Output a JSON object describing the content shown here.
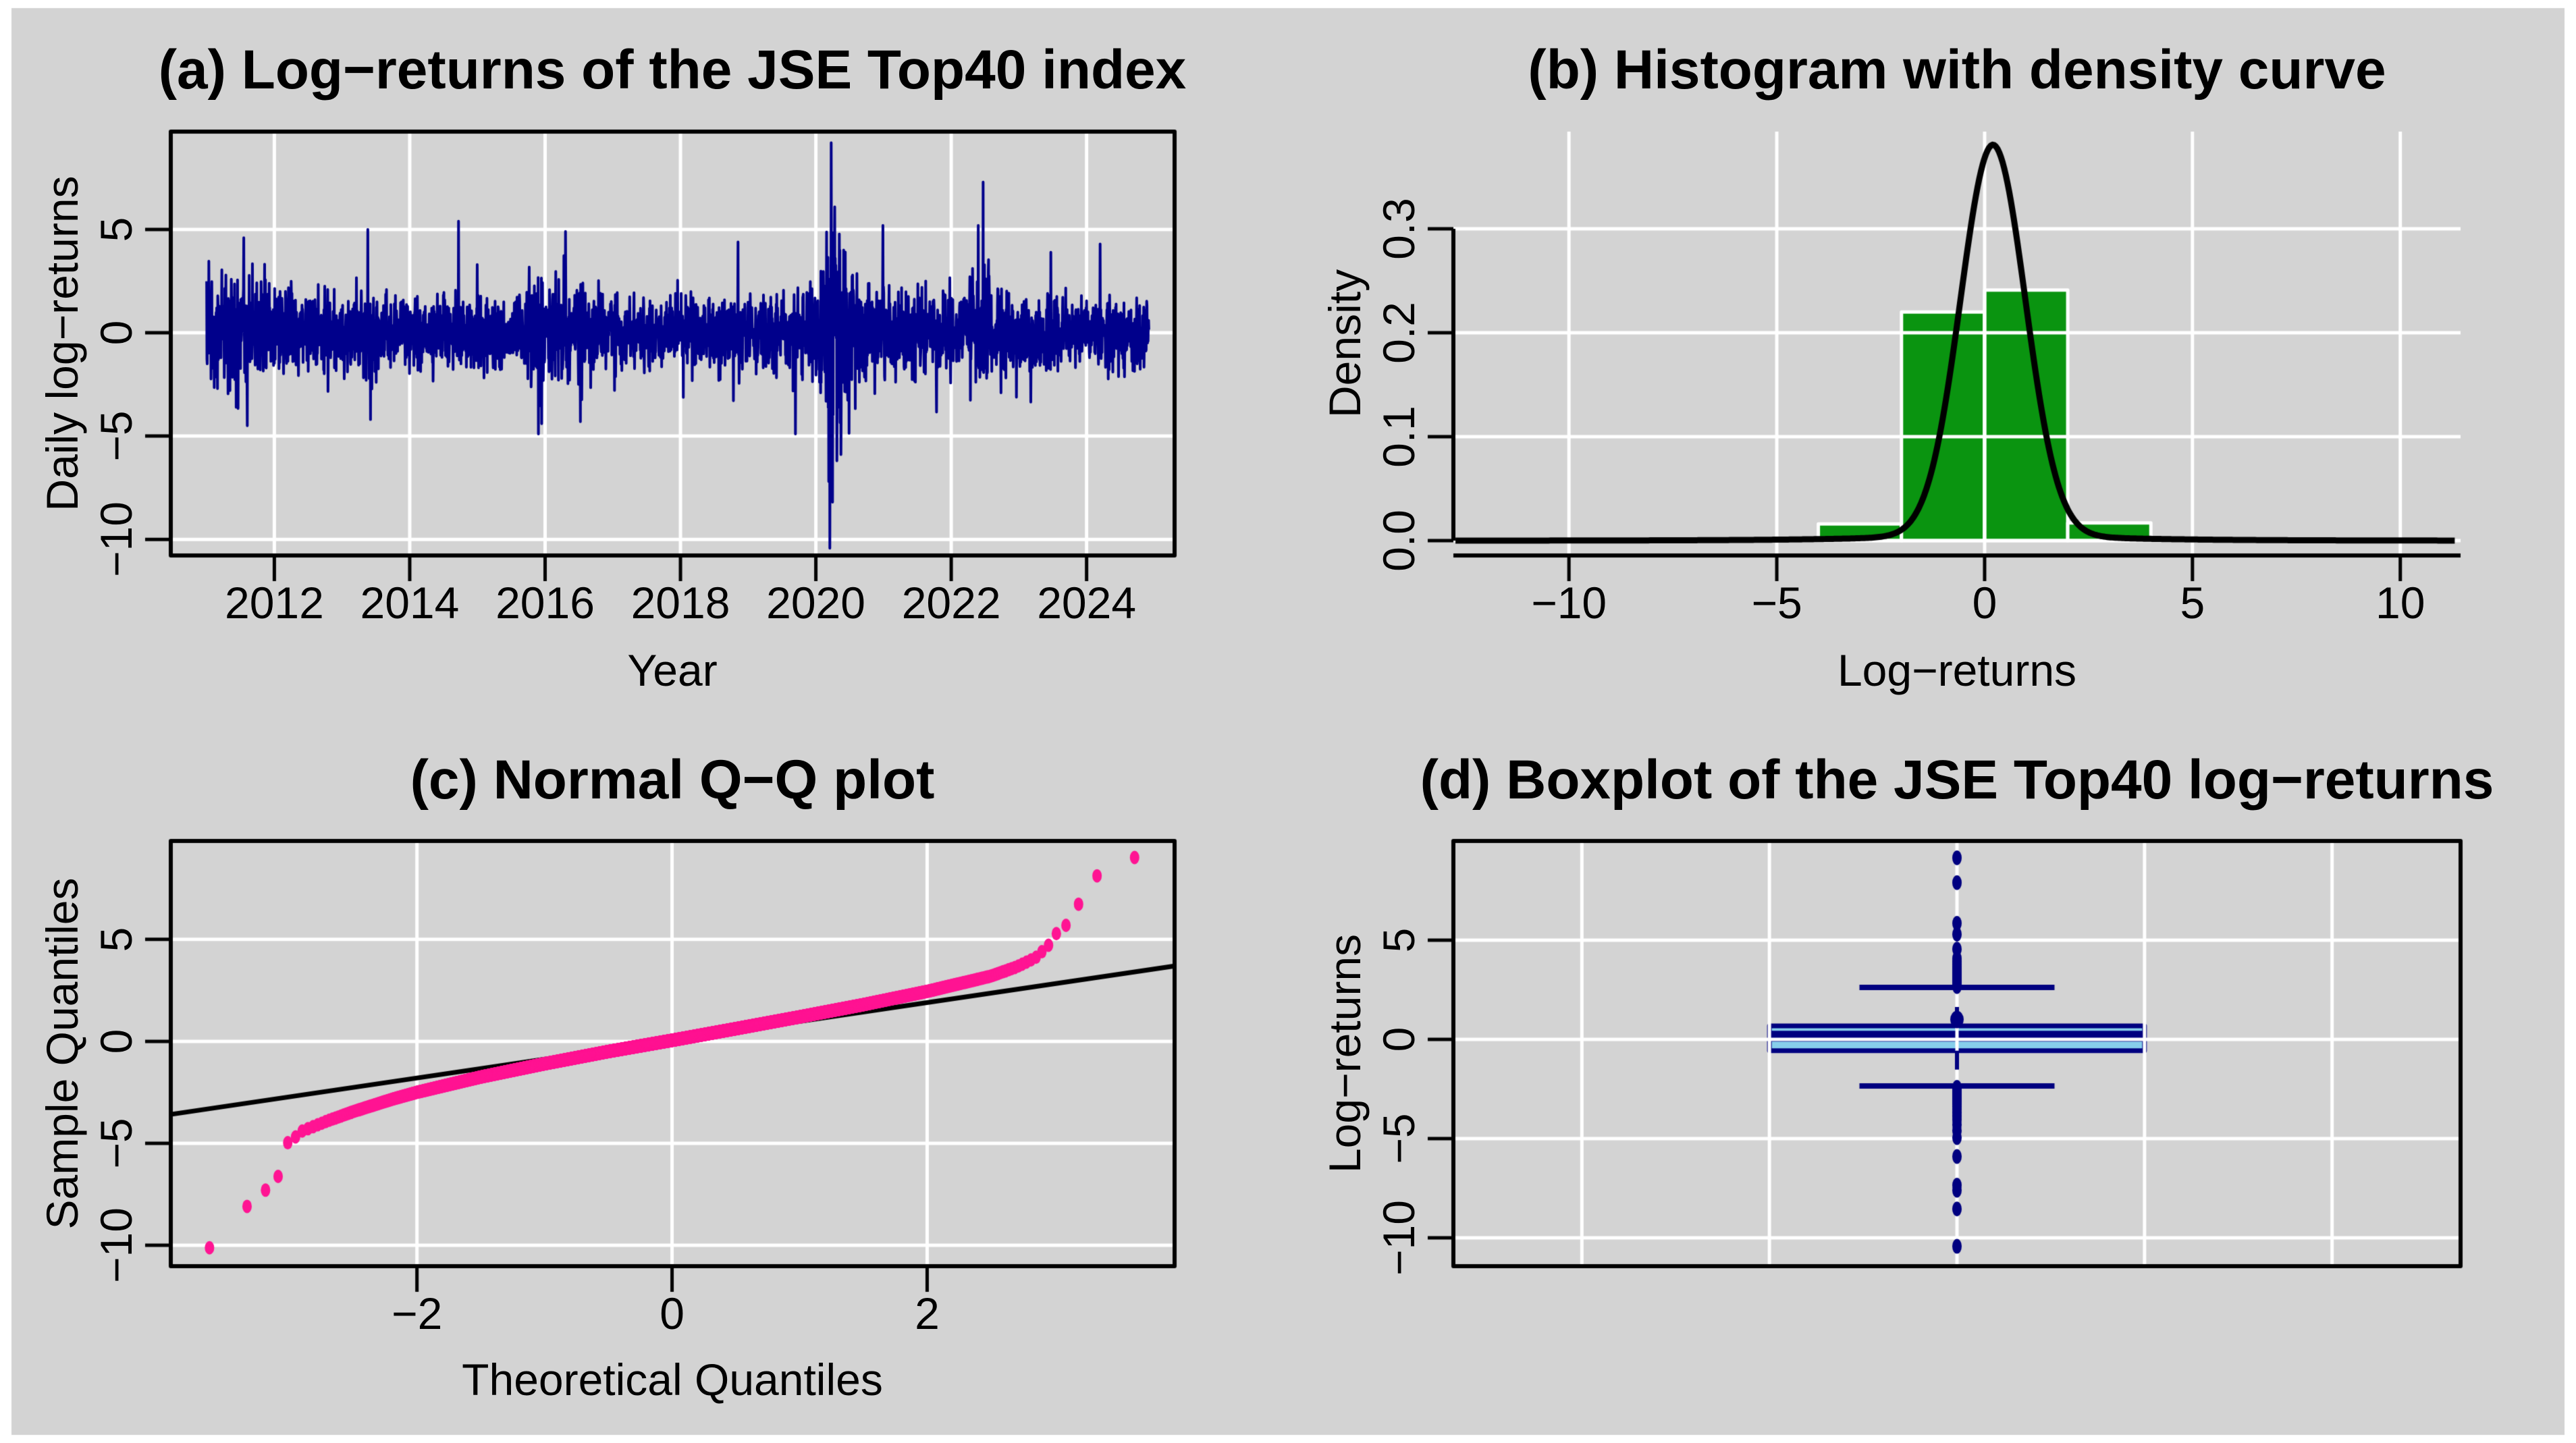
{
  "figure": {
    "background": "#ffffff",
    "canvas_background": "#d3d3d3",
    "grid_color": "#ffffff",
    "axis_color": "#000000",
    "text_color": "#000000"
  },
  "chart_data": [
    {
      "id": "a",
      "type": "line",
      "title": "(a) Log−returns of the JSE Top40 index",
      "xlabel": "Year",
      "ylabel": "Daily log−returns",
      "x_ticks": [
        2012,
        2014,
        2016,
        2018,
        2020,
        2022,
        2024
      ],
      "x_tick_labels": [
        "2012",
        "2014",
        "2016",
        "2018",
        "2020",
        "2022",
        "2024"
      ],
      "y_ticks": [
        5,
        0,
        -5,
        -10
      ],
      "y_tick_labels": [
        "5",
        "0",
        "−5",
        "−10"
      ],
      "x_range": [
        2010.47,
        2025.3
      ],
      "y_range": [
        -10.78,
        9.74
      ],
      "grid": true,
      "series": {
        "name": "daily-log-returns",
        "color": "#00008B",
        "n": 3480,
        "t_start": 2011.0,
        "t_end": 2024.92,
        "seed": 42,
        "value_min": -10.43,
        "value_max": 9.2,
        "volatility_knots": [
          [
            2011.0,
            1.15
          ],
          [
            2011.6,
            1.35
          ],
          [
            2012.2,
            0.95
          ],
          [
            2013.0,
            0.88
          ],
          [
            2013.5,
            1.0
          ],
          [
            2014.3,
            0.8
          ],
          [
            2014.9,
            1.0
          ],
          [
            2015.6,
            0.95
          ],
          [
            2016.0,
            1.2
          ],
          [
            2016.7,
            1.05
          ],
          [
            2017.4,
            0.7
          ],
          [
            2018.2,
            0.9
          ],
          [
            2019.0,
            1.0
          ],
          [
            2019.8,
            0.95
          ],
          [
            2020.15,
            1.7
          ],
          [
            2020.25,
            2.6
          ],
          [
            2020.6,
            1.5
          ],
          [
            2021.2,
            1.0
          ],
          [
            2021.9,
            0.9
          ],
          [
            2022.45,
            1.25
          ],
          [
            2023.2,
            0.95
          ],
          [
            2024.0,
            0.8
          ],
          [
            2024.92,
            0.85
          ]
        ],
        "events": [
          [
            2011.55,
            4.6
          ],
          [
            2011.6,
            -4.5
          ],
          [
            2013.38,
            5.0
          ],
          [
            2013.42,
            -4.2
          ],
          [
            2014.72,
            5.4
          ],
          [
            2015.95,
            -4.4
          ],
          [
            2016.3,
            4.9
          ],
          [
            2016.52,
            -4.3
          ],
          [
            2018.85,
            4.4
          ],
          [
            2019.7,
            -4.9
          ],
          [
            2020.19,
            -7.2
          ],
          [
            2020.205,
            -10.43
          ],
          [
            2020.225,
            9.2
          ],
          [
            2020.245,
            -8.2
          ],
          [
            2020.28,
            6.1
          ],
          [
            2020.31,
            -6.2
          ],
          [
            2022.4,
            5.2
          ],
          [
            2022.47,
            7.3
          ],
          [
            2023.47,
            3.9
          ],
          [
            2024.2,
            4.3
          ]
        ]
      }
    },
    {
      "id": "b",
      "type": "bar",
      "title": "(b) Histogram with density curve",
      "xlabel": "Log−returns",
      "ylabel": "Density",
      "x_ticks": [
        -10,
        -5,
        0,
        5,
        10
      ],
      "x_tick_labels": [
        "−10",
        "−5",
        "0",
        "5",
        "10"
      ],
      "y_ticks": [
        0,
        0.1,
        0.2,
        0.3
      ],
      "y_tick_labels": [
        "0.0",
        "0.1",
        "0.2",
        "0.3"
      ],
      "x_range": [
        -12.78,
        11.45
      ],
      "y_range": [
        -0.01428,
        0.3935
      ],
      "grid": true,
      "bar_color": "#0A9410",
      "bar_border": "#ffffff",
      "bins": [
        {
          "from": -4,
          "to": -2,
          "density": 0.016
        },
        {
          "from": -2,
          "to": 0,
          "density": 0.22
        },
        {
          "from": 0,
          "to": 2,
          "density": 0.241
        },
        {
          "from": 2,
          "to": 4,
          "density": 0.017
        }
      ],
      "density_curve": {
        "color": "#000000",
        "peak": 0.372,
        "center": 0.2,
        "sigma": 0.78,
        "tail_amp": 0.009,
        "tail_scale": 2.3
      }
    },
    {
      "id": "c",
      "type": "scatter",
      "title": "(c) Normal Q−Q plot",
      "xlabel": "Theoretical Quantiles",
      "ylabel": "Sample Quantiles",
      "x_ticks": [
        -2,
        0,
        2
      ],
      "x_tick_labels": [
        "−2",
        "0",
        "2"
      ],
      "y_ticks": [
        5,
        0,
        -5,
        -10
      ],
      "y_tick_labels": [
        "5",
        "0",
        "−5",
        "−10"
      ],
      "x_range": [
        -3.93,
        3.94
      ],
      "y_range": [
        -11.03,
        9.83
      ],
      "grid": true,
      "n_points": 3480,
      "point_color": "#FF1493",
      "qq_anchors": [
        [
          -3.67,
          -10.43
        ],
        [
          -3.35,
          -8.2
        ],
        [
          -3.22,
          -7.45
        ],
        [
          -3.1,
          -6.9
        ],
        [
          -3.02,
          -5.0
        ],
        [
          -2.98,
          -4.85
        ],
        [
          -2.9,
          -4.4
        ],
        [
          -2.7,
          -3.9
        ],
        [
          -2.5,
          -3.45
        ],
        [
          -2.2,
          -2.85
        ],
        [
          -2.0,
          -2.5
        ],
        [
          -1.5,
          -1.75
        ],
        [
          -1.0,
          -1.1
        ],
        [
          -0.5,
          -0.5
        ],
        [
          0,
          0.05
        ],
        [
          0.5,
          0.62
        ],
        [
          1.0,
          1.2
        ],
        [
          1.5,
          1.8
        ],
        [
          2.0,
          2.45
        ],
        [
          2.3,
          2.9
        ],
        [
          2.5,
          3.2
        ],
        [
          2.7,
          3.65
        ],
        [
          2.85,
          4.1
        ],
        [
          2.95,
          4.7
        ],
        [
          3.02,
          5.35
        ],
        [
          3.13,
          5.9
        ],
        [
          3.27,
          7.93
        ],
        [
          3.67,
          9.15
        ]
      ],
      "reference_line": {
        "slope": 0.925,
        "intercept": 0.05,
        "color": "#000000"
      }
    },
    {
      "id": "d",
      "type": "boxplot",
      "title": "(d) Boxplot of the JSE Top40 log−returns",
      "xlabel": "",
      "ylabel": "Log−returns",
      "y_ticks": [
        5,
        0,
        -5,
        -10
      ],
      "y_tick_labels": [
        "5",
        "0",
        "−5",
        "−10"
      ],
      "x_range": [
        0.463,
        1.537
      ],
      "y_range": [
        -11.43,
        10.0
      ],
      "grid_x": [
        0.6,
        0.8,
        1.0,
        1.2,
        1.4
      ],
      "grid": true,
      "box": {
        "center": 1,
        "halfwidth": 0.2,
        "cap_halfwidth": 0.104,
        "q1": -0.57,
        "median": 0.16,
        "q3": 0.68,
        "lower_whisker": -2.35,
        "upper_whisker": 2.62,
        "mean_dot": 1.0,
        "fill": "#87CEEB",
        "border": "#000080"
      },
      "outliers_upper": [
        2.66,
        2.72,
        2.78,
        2.84,
        2.9,
        2.96,
        3.02,
        3.1,
        3.18,
        3.26,
        3.35,
        3.45,
        3.55,
        3.66,
        3.78,
        3.92,
        4.08,
        4.55,
        5.3,
        5.85,
        7.9,
        9.15
      ],
      "outliers_lower": [
        -2.42,
        -2.48,
        -2.54,
        -2.6,
        -2.66,
        -2.72,
        -2.8,
        -2.88,
        -2.96,
        -3.05,
        -3.15,
        -3.26,
        -3.38,
        -3.52,
        -3.68,
        -3.85,
        -4.05,
        -4.3,
        -4.6,
        -4.95,
        -5.9,
        -7.35,
        -7.6,
        -8.55,
        -10.43
      ]
    }
  ]
}
